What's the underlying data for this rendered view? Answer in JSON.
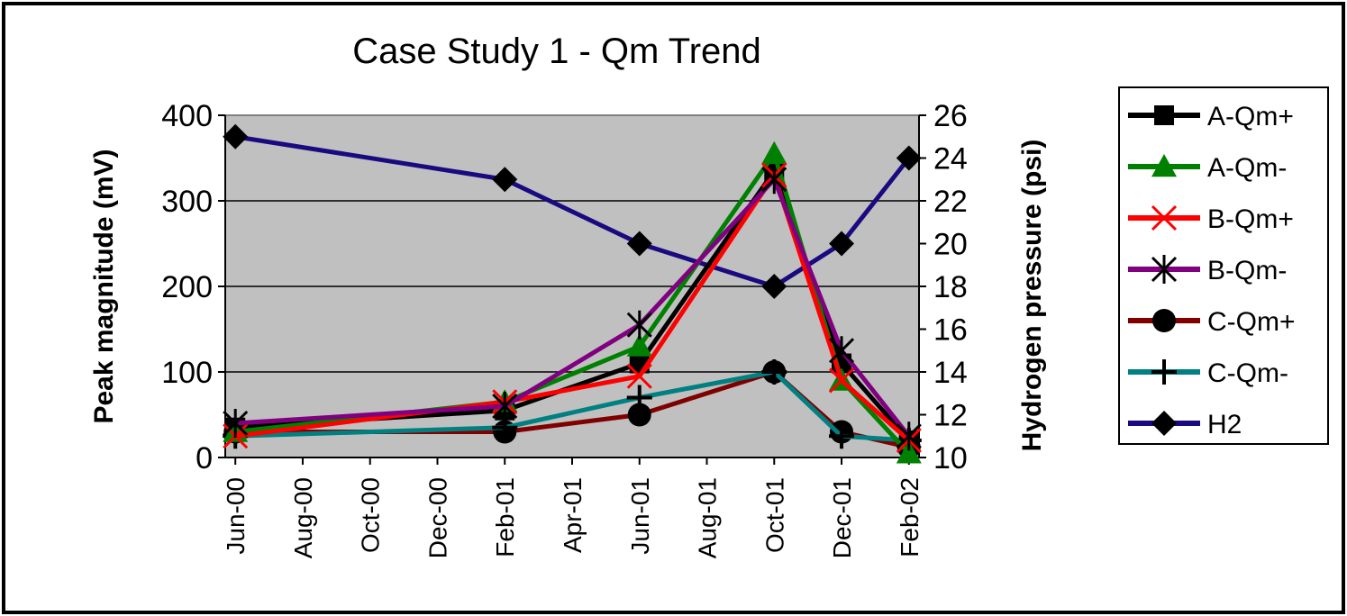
{
  "chart_data": {
    "type": "line",
    "title": "Case Study 1 - Qm Trend",
    "ylabel": "Peak magnitude (mV)",
    "y2label": "Hydrogen pressure (psi)",
    "ylim": [
      0,
      400
    ],
    "y2lim": [
      10,
      26
    ],
    "yticks": [
      "0",
      "100",
      "200",
      "300",
      "400"
    ],
    "y2ticks": [
      "10",
      "12",
      "14",
      "16",
      "18",
      "20",
      "22",
      "24",
      "26"
    ],
    "xticks": [
      "Jun-00",
      "Aug-00",
      "Oct-00",
      "Dec-00",
      "Feb-01",
      "Apr-01",
      "Jun-01",
      "Aug-01",
      "Oct-01",
      "Dec-01",
      "Feb-02"
    ],
    "grid": true,
    "legend_position": "right",
    "plot_background": "#c0c0c0",
    "x": [
      "Jun-00",
      "Feb-01",
      "Jun-01",
      "Oct-01",
      "Dec-01",
      "Feb-02"
    ],
    "series": [
      {
        "name": "A-Qm+",
        "axis": "left",
        "color": "#000000",
        "marker": "square",
        "values": [
          35,
          55,
          110,
          335,
          110,
          20
        ]
      },
      {
        "name": "A-Qm-",
        "axis": "left",
        "color": "#008000",
        "marker": "triangle",
        "values": [
          30,
          65,
          130,
          355,
          90,
          5
        ]
      },
      {
        "name": "B-Qm+",
        "axis": "left",
        "color": "#ff0000",
        "marker": "x",
        "values": [
          25,
          65,
          95,
          330,
          90,
          20
        ]
      },
      {
        "name": "B-Qm-",
        "axis": "left",
        "color": "#800080",
        "marker": "star",
        "values": [
          40,
          60,
          155,
          325,
          125,
          25
        ]
      },
      {
        "name": "C-Qm+",
        "axis": "left",
        "color": "#800000",
        "marker": "circle",
        "values": [
          30,
          30,
          50,
          100,
          30,
          12
        ]
      },
      {
        "name": "C-Qm-",
        "axis": "left",
        "color": "#008080",
        "marker": "plus",
        "values": [
          25,
          35,
          70,
          100,
          25,
          20
        ]
      },
      {
        "name": "H2",
        "axis": "right",
        "color": "#1a0a80",
        "marker": "diamond",
        "values": [
          25,
          23,
          20,
          18,
          20,
          24
        ]
      }
    ]
  }
}
